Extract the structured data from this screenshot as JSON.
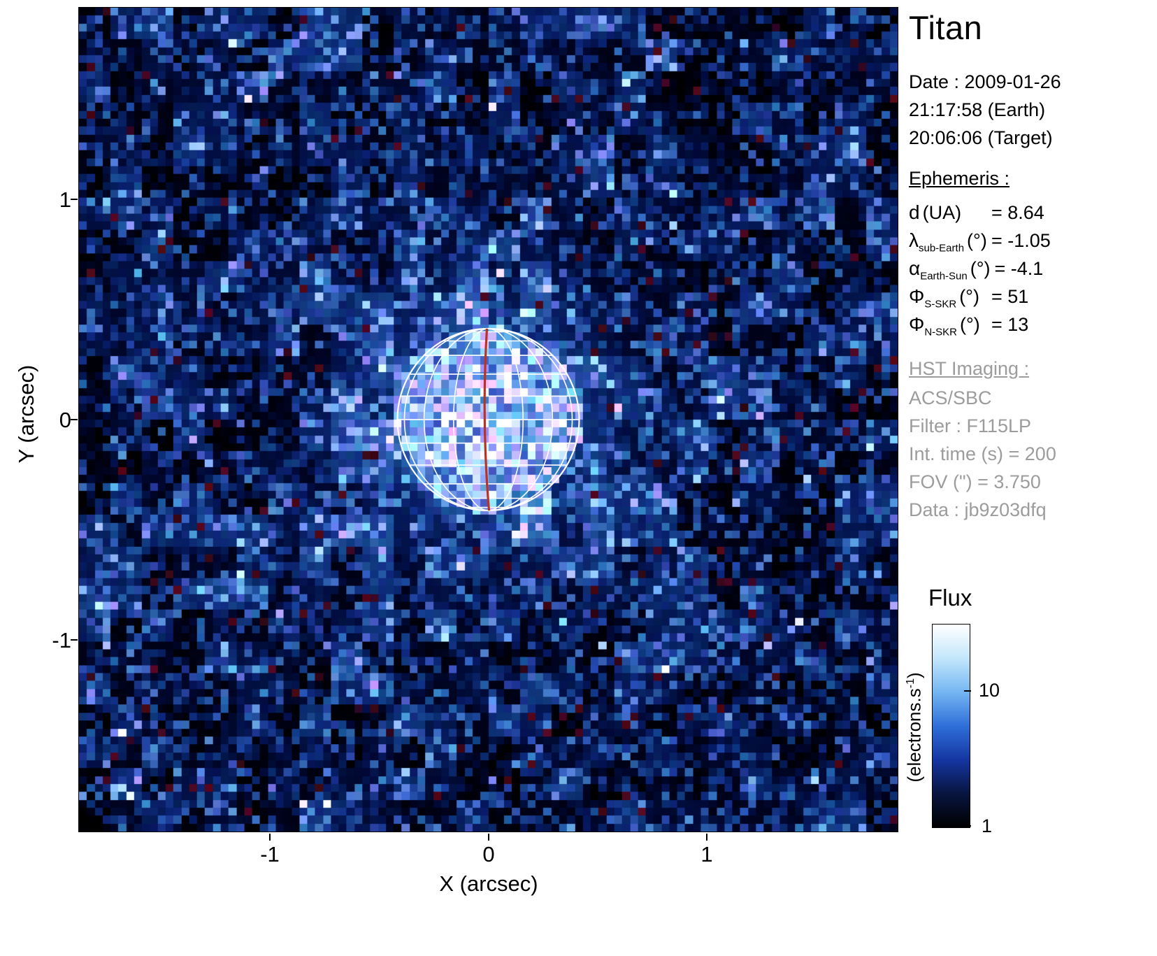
{
  "figure": {
    "title": "Titan"
  },
  "obs": {
    "date": "Date : 2009-01-26",
    "earth_time": "21:17:58 (Earth)",
    "target_time": "20:06:06 (Target)"
  },
  "ephemeris": {
    "heading": "Ephemeris :",
    "rows": [
      {
        "sym": "d",
        "sub": "",
        "unit": "(UA)",
        "val": "= 8.64"
      },
      {
        "sym": "λ",
        "sub": "sub-Earth",
        "unit": "(°)",
        "val": "= -1.05"
      },
      {
        "sym": "α",
        "sub": "Earth-Sun",
        "unit": "(°)",
        "val": "= -4.1"
      },
      {
        "sym": "Φ",
        "sub": "S-SKR",
        "unit": "(°)",
        "val": "= 51"
      },
      {
        "sym": "Φ",
        "sub": "N-SKR",
        "unit": "(°)",
        "val": "= 13"
      }
    ]
  },
  "hst": {
    "heading": "HST Imaging :",
    "lines": [
      "ACS/SBC",
      "Filter : F115LP",
      "Int. time (s) = 200",
      "FOV (\") = 3.750",
      "Data : jb9z03dfq"
    ]
  },
  "axes": {
    "x_label": "X (arcsec)",
    "y_label": "Y (arcsec)",
    "x_ticks": [
      "-1",
      "0",
      "1"
    ],
    "y_ticks": [
      "1",
      "0",
      "-1"
    ]
  },
  "colorbar": {
    "title": "Flux",
    "unit_prefix": "(electrons.s",
    "unit_sup": "-1",
    "unit_suffix": ")",
    "tick_top": "10",
    "tick_bottom": "1",
    "gradient": [
      "#ffffff",
      "#c3e6fb",
      "#74b6f2",
      "#2f6fd9",
      "#1536a2",
      "#081540",
      "#000000"
    ]
  },
  "chart_data": {
    "type": "heatmap",
    "title": "Titan",
    "description": "HST ACS/SBC F115LP UV image of Titan: log-scaled flux map on a noisy dark-blue sky background, bright disk of Titan at image center overlaid with a white planetographic latitude/longitude grid and a red sub-observer central meridian line",
    "xlabel": "X (arcsec)",
    "ylabel": "Y (arcsec)",
    "x_range": [
      -1.875,
      1.875
    ],
    "y_range": [
      -1.875,
      1.875
    ],
    "x_ticks": [
      -1,
      0,
      1
    ],
    "y_ticks": [
      1,
      0,
      -1
    ],
    "fov_arcsec": 3.75,
    "colorbar": {
      "label": "Flux",
      "units": "electrons.s-1",
      "scale": "log",
      "ticks": [
        10,
        1
      ],
      "min": 1,
      "max": 30
    },
    "disk": {
      "center_arcsec": [
        0.0,
        0.0
      ],
      "radius_arcsec": 0.42,
      "center_frac": [
        0.5,
        0.5
      ],
      "radius_frac": 0.111,
      "lat_step_deg": 15,
      "lon_offsets_deg": [
        22.5,
        45,
        67.5
      ],
      "grid_color": "#ffffff",
      "central_meridian_color": "#bb3220"
    },
    "noise": {
      "cells": 104,
      "coarse_cells": 26,
      "seed": 20090126
    }
  }
}
